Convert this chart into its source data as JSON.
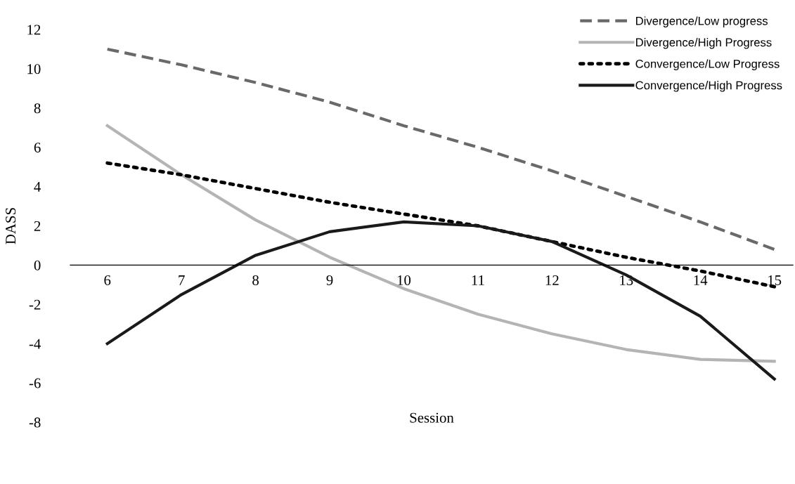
{
  "chart_data": {
    "type": "line",
    "xlabel": "Session",
    "ylabel": "DASS",
    "categories": [
      "6",
      "7",
      "8",
      "9",
      "10",
      "11",
      "12",
      "13",
      "14",
      "15"
    ],
    "ylim": [
      -8,
      12
    ],
    "yticks": [
      -8,
      -6,
      -4,
      -2,
      0,
      2,
      4,
      6,
      8,
      10,
      12
    ],
    "grid": false,
    "legend": "top right",
    "marker": "none",
    "series": [
      {
        "name": "Divergence/Low progress",
        "color": "#696969",
        "line_style": "dashed",
        "values": [
          11,
          10.2,
          9.3,
          8.3,
          7.1,
          6.0,
          4.8,
          3.5,
          2.2,
          0.8
        ]
      },
      {
        "name": "Divergence/High Progress",
        "color": "#b4b4b4",
        "line_style": "solid",
        "values": [
          7.1,
          4.6,
          2.3,
          0.4,
          -1.2,
          -2.5,
          -3.5,
          -4.3,
          -4.8,
          -4.9
        ]
      },
      {
        "name": "Convergence/Low Progress",
        "color": "#000000",
        "line_style": "dotted",
        "values": [
          5.2,
          4.6,
          3.9,
          3.2,
          2.6,
          2.0,
          1.2,
          0.4,
          -0.3,
          -1.1
        ]
      },
      {
        "name": "Convergence/High Progress",
        "color": "#1a1a1a",
        "line_style": "solid",
        "values": [
          -4.0,
          -1.5,
          0.5,
          1.7,
          2.2,
          2.0,
          1.2,
          -0.5,
          -2.6,
          -5.8
        ]
      }
    ]
  }
}
